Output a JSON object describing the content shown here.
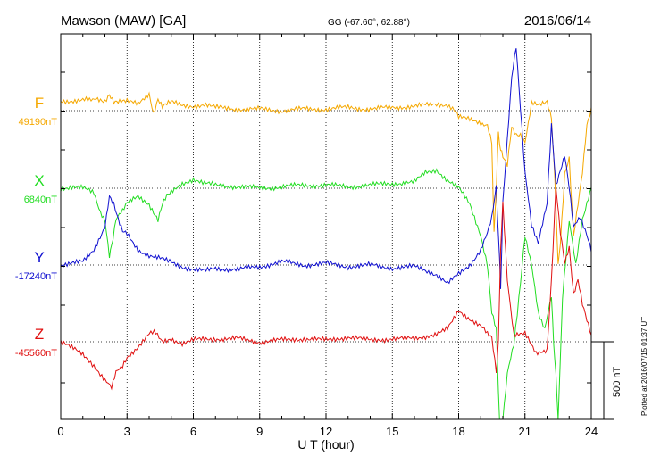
{
  "header": {
    "station": "Mawson (MAW)  [GA]",
    "coords": "GG (-67.60°,  62.88°)",
    "date": "2016/06/14"
  },
  "footer": {
    "plotted": "Plotted at 2016/07/15 01:37 UT"
  },
  "scale_bar": {
    "label": "500 nT",
    "value_nT": 500
  },
  "colors": {
    "F": "#f5a800",
    "X": "#22dd22",
    "Y": "#1010d0",
    "Z": "#e01010"
  },
  "chart_data": {
    "type": "line",
    "xlabel": "U T (hour)",
    "xlim": [
      0,
      24
    ],
    "xticks": [
      0,
      3,
      6,
      9,
      12,
      15,
      18,
      21,
      24
    ],
    "grid": true,
    "series": [
      {
        "name": "F",
        "baseline_label": "49190nT",
        "x": [
          0,
          0.5,
          1,
          1.3,
          1.6,
          2,
          2.2,
          2.4,
          2.6,
          3,
          3.5,
          4,
          4.2,
          4.4,
          4.6,
          4.8,
          5,
          5.5,
          6,
          6.5,
          7,
          8,
          9,
          10,
          11,
          12,
          13,
          14,
          15,
          16,
          17,
          17.5,
          17.8,
          18,
          18.5,
          19,
          19.3,
          19.5,
          19.6,
          19.7,
          19.8,
          19.9,
          20,
          20.2,
          20.4,
          20.6,
          20.8,
          21,
          21.3,
          21.6,
          22,
          22.2,
          22.3,
          22.4,
          22.5,
          22.6,
          22.8,
          23,
          23.2,
          23.4,
          23.6,
          23.8,
          24
        ],
        "values": [
          60,
          65,
          70,
          65,
          85,
          60,
          100,
          50,
          50,
          60,
          40,
          110,
          -20,
          70,
          20,
          40,
          55,
          30,
          30,
          40,
          20,
          10,
          10,
          0,
          10,
          10,
          20,
          10,
          20,
          30,
          40,
          40,
          0,
          -40,
          -60,
          -80,
          -90,
          -200,
          -800,
          -500,
          -150,
          -250,
          -300,
          -350,
          -100,
          -150,
          -150,
          -200,
          50,
          30,
          50,
          -50,
          -300,
          -600,
          -1000,
          -850,
          -400,
          -300,
          -800,
          -600,
          -400,
          -100,
          0
        ]
      },
      {
        "name": "X",
        "baseline_label": "6840nT",
        "x": [
          0,
          0.5,
          1,
          1.5,
          1.8,
          2,
          2.2,
          2.3,
          2.5,
          2.8,
          3,
          3.5,
          4,
          4.2,
          4.4,
          4.6,
          4.8,
          5,
          5.5,
          6,
          6.5,
          7,
          8,
          9,
          10,
          11,
          12,
          13,
          14,
          15,
          16,
          16.5,
          17,
          17.5,
          18,
          18.5,
          19,
          19.3,
          19.5,
          19.7,
          19.8,
          19.9,
          20,
          20.2,
          20.5,
          20.8,
          21,
          21.3,
          21.6,
          21.9,
          22.2,
          22.3,
          22.4,
          22.5,
          22.7,
          23,
          23.3,
          23.6,
          24
        ],
        "values": [
          0,
          10,
          0,
          -30,
          -150,
          -200,
          -430,
          -380,
          -200,
          -150,
          -100,
          -50,
          -100,
          -150,
          -200,
          -100,
          -50,
          -30,
          30,
          60,
          30,
          20,
          10,
          0,
          10,
          20,
          20,
          10,
          20,
          30,
          40,
          100,
          120,
          50,
          0,
          -100,
          -300,
          -500,
          -800,
          -900,
          -1300,
          -2900,
          -1500,
          -1200,
          -1000,
          -600,
          -300,
          -500,
          -800,
          -900,
          -700,
          -1000,
          -1200,
          -1500,
          -700,
          -200,
          -500,
          -200,
          0
        ]
      },
      {
        "name": "Y",
        "baseline_label": "-17240nT",
        "x": [
          0,
          0.5,
          1,
          1.5,
          2,
          2.2,
          2.4,
          2.6,
          2.8,
          3,
          3.5,
          4,
          4.5,
          5,
          5.5,
          6,
          6.5,
          7,
          8,
          9,
          10,
          11,
          12,
          13,
          14,
          15,
          16,
          17,
          17.5,
          18,
          18.5,
          19,
          19.3,
          19.5,
          19.7,
          19.8,
          19.9,
          20,
          20.2,
          20.4,
          20.6,
          20.8,
          21,
          21.3,
          21.6,
          22,
          22.2,
          22.4,
          22.6,
          22.8,
          23,
          23.2,
          23.5,
          23.8,
          24
        ],
        "values": [
          0,
          10,
          20,
          100,
          250,
          450,
          400,
          300,
          220,
          200,
          100,
          60,
          40,
          20,
          -10,
          -30,
          -40,
          -20,
          -30,
          -10,
          20,
          0,
          10,
          -10,
          0,
          -20,
          -10,
          -60,
          -120,
          -60,
          0,
          100,
          200,
          300,
          500,
          200,
          -150,
          400,
          800,
          1200,
          1400,
          1000,
          600,
          250,
          150,
          400,
          900,
          500,
          600,
          700,
          500,
          250,
          300,
          200,
          100
        ]
      },
      {
        "name": "Z",
        "baseline_label": "-45560nT",
        "x": [
          0,
          0.5,
          1,
          1.5,
          2,
          2.3,
          2.5,
          2.8,
          3,
          3.5,
          4,
          4.3,
          4.6,
          5,
          5.5,
          6,
          7,
          8,
          9,
          10,
          11,
          12,
          13,
          14,
          15,
          16,
          17,
          17.5,
          18,
          18.5,
          19,
          19.3,
          19.5,
          19.7,
          19.8,
          19.9,
          20,
          20.2,
          20.5,
          21,
          21.5,
          22,
          22.2,
          22.4,
          22.6,
          22.8,
          23,
          23.2,
          23.4,
          23.6,
          23.8,
          24
        ],
        "values": [
          0,
          -40,
          -80,
          -150,
          -250,
          -300,
          -200,
          -150,
          -100,
          -30,
          50,
          60,
          10,
          20,
          -10,
          10,
          20,
          20,
          0,
          10,
          20,
          10,
          30,
          10,
          20,
          20,
          50,
          80,
          200,
          150,
          100,
          50,
          20,
          -200,
          0,
          600,
          900,
          400,
          50,
          50,
          -80,
          -50,
          400,
          1000,
          700,
          500,
          600,
          300,
          400,
          250,
          150,
          50
        ]
      }
    ]
  }
}
